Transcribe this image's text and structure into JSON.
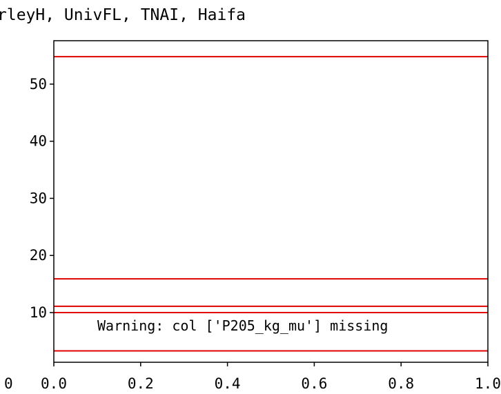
{
  "chart_data": {
    "type": "line",
    "title": "rleyH, UnivFL, TNAI, Haifa",
    "xlabel": "",
    "ylabel": "",
    "xlim": [
      0.0,
      1.0
    ],
    "ylim": [
      1.3,
      57.6
    ],
    "x_ticks": [
      "0.0",
      "0.2",
      "0.4",
      "0.6",
      "0.8",
      "1.0"
    ],
    "x_tick_values": [
      0.0,
      0.2,
      0.4,
      0.6,
      0.8,
      1.0
    ],
    "y_ticks": [
      "10",
      "20",
      "30",
      "40",
      "50"
    ],
    "y_tick_values": [
      10,
      20,
      30,
      40,
      50
    ],
    "left_edge_label": "0",
    "horizontal_lines": [
      54.8,
      15.9,
      11.1,
      10.0,
      3.3
    ],
    "line_color": "#e00000",
    "annotation": "Warning: col ['P205_kg_mu'] missing",
    "grid": false,
    "legend": false
  }
}
